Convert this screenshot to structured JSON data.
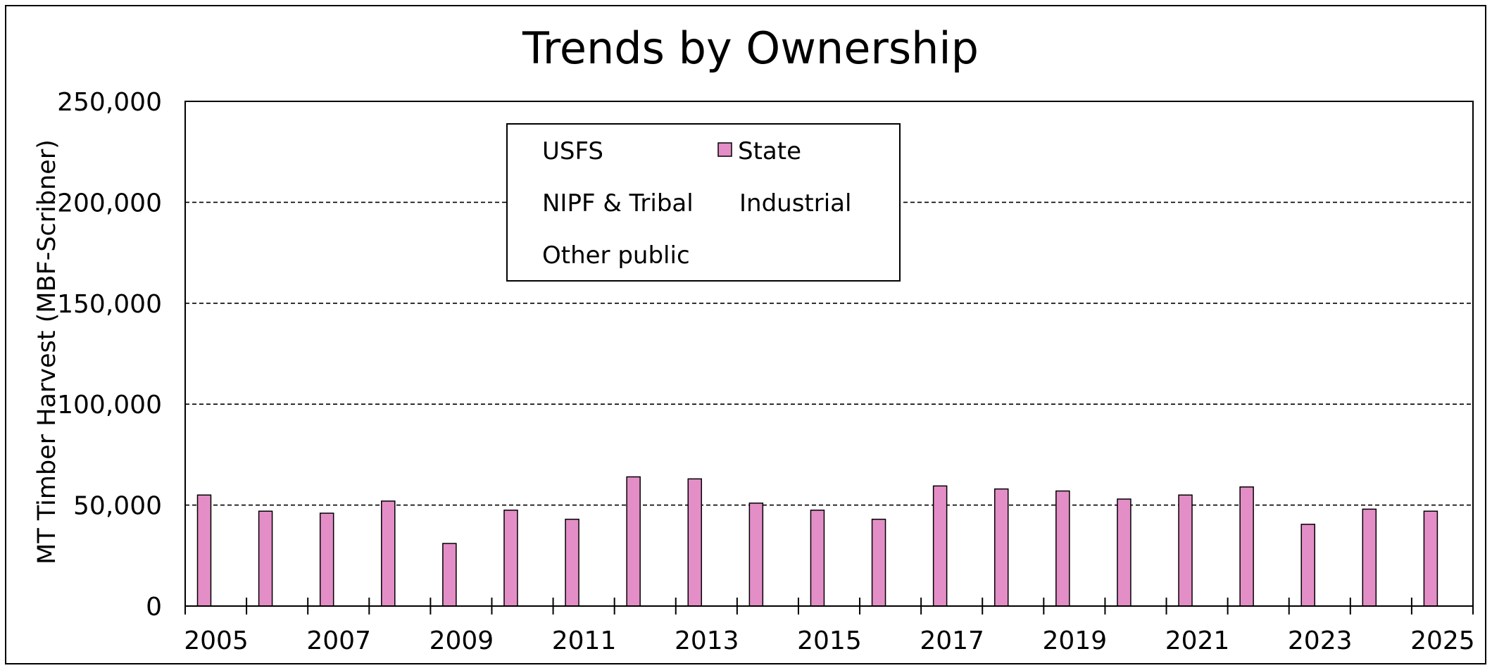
{
  "chart_data": {
    "type": "bar",
    "title": "Trends by Ownership",
    "xlabel": "",
    "ylabel": "MT Timber Harvest (MBF-Scribner)",
    "ylim": [
      0,
      250000
    ],
    "y_ticks": [
      0,
      50000,
      100000,
      150000,
      200000,
      250000
    ],
    "y_tick_labels": [
      "0",
      "50,000",
      "100,000",
      "150,000",
      "200,000",
      "250,000"
    ],
    "x_tick_labels": [
      "2005",
      "2007",
      "2009",
      "2011",
      "2013",
      "2015",
      "2017",
      "2019",
      "2021",
      "2023",
      "2025"
    ],
    "categories": [
      "2005",
      "2006",
      "2007",
      "2008",
      "2009",
      "2010",
      "2011",
      "2012",
      "2013",
      "2014",
      "2015",
      "2016",
      "2017",
      "2018",
      "2019",
      "2020",
      "2021",
      "2022",
      "2023",
      "2024",
      "2025"
    ],
    "grid": true,
    "grid_style": "dashed horizontal",
    "legend_position": "top-center",
    "legend": [
      "USFS",
      "State",
      "NIPF & Tribal",
      "Industrial",
      "Other public"
    ],
    "series": [
      {
        "name": "State",
        "color": "#e38ec6",
        "values": [
          55000,
          47000,
          46000,
          52000,
          31000,
          47500,
          43000,
          64000,
          63000,
          51000,
          47500,
          43000,
          59500,
          58000,
          57000,
          53000,
          55000,
          59000,
          40500,
          48000,
          47000
        ]
      }
    ]
  }
}
